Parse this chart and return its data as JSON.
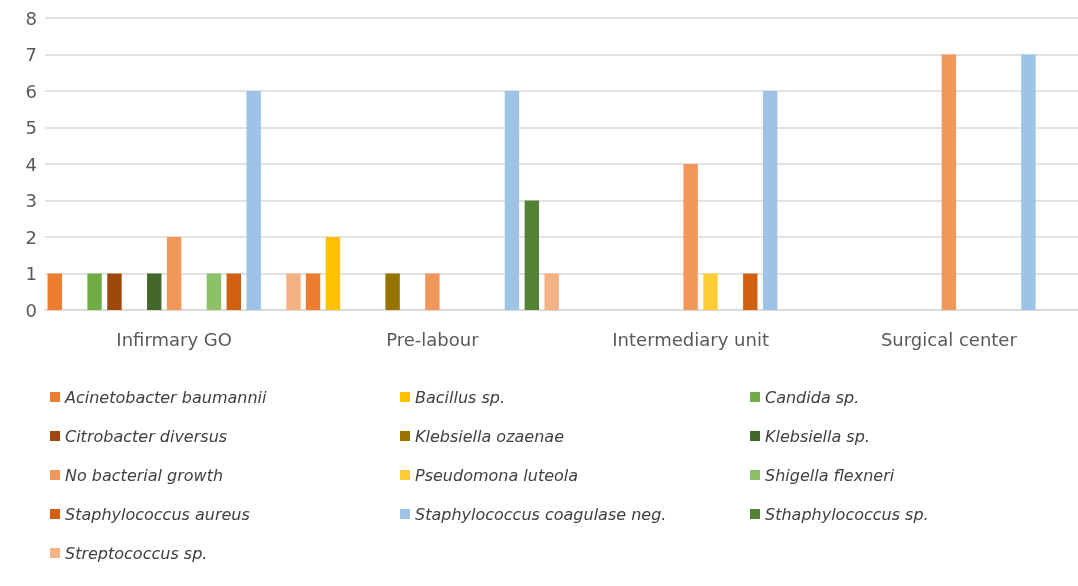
{
  "chart_data": {
    "type": "bar",
    "categories": [
      "Infirmary GO",
      "Pre-labour",
      "Intermediary unit",
      "Surgical center"
    ],
    "ylim": [
      0,
      8
    ],
    "yticks": [
      0,
      1,
      2,
      3,
      4,
      5,
      6,
      7,
      8
    ],
    "grid": "y",
    "legend": "bottom",
    "series": [
      {
        "name": "Acinetobacter baumannii",
        "color": "#ed7d31",
        "values": [
          1,
          1,
          null,
          null
        ]
      },
      {
        "name": "Bacillus sp.",
        "color": "#ffc000",
        "values": [
          null,
          2,
          null,
          null
        ]
      },
      {
        "name": "Candida sp.",
        "color": "#70ad47",
        "values": [
          1,
          null,
          null,
          null
        ]
      },
      {
        "name": "Citrobacter diversus",
        "color": "#9e480e",
        "values": [
          1,
          null,
          null,
          null
        ]
      },
      {
        "name": "Klebsiella ozaenae",
        "color": "#997300",
        "values": [
          null,
          1,
          null,
          null
        ]
      },
      {
        "name": "Klebsiella sp.",
        "color": "#43682b",
        "values": [
          1,
          null,
          null,
          null
        ]
      },
      {
        "name": "No bacterial growth",
        "color": "#f1975a",
        "values": [
          2,
          1,
          4,
          7
        ]
      },
      {
        "name": "Pseudomona luteola",
        "color": "#ffcd33",
        "values": [
          null,
          null,
          1,
          null
        ]
      },
      {
        "name": "Shigella flexneri",
        "color": "#8cc168",
        "values": [
          1,
          null,
          null,
          null
        ]
      },
      {
        "name": "Staphylococcus aureus",
        "color": "#d26012",
        "values": [
          1,
          null,
          1,
          null
        ]
      },
      {
        "name": "Staphylococcus coagulase neg.",
        "color": "#9dc3e6",
        "values": [
          6,
          6,
          6,
          7
        ]
      },
      {
        "name": "Sthaphylococcus sp.",
        "color": "#548235",
        "values": [
          null,
          3,
          null,
          null
        ]
      },
      {
        "name": "Streptococcus sp.",
        "color": "#f4b183",
        "values": [
          1,
          1,
          null,
          null
        ]
      }
    ]
  }
}
